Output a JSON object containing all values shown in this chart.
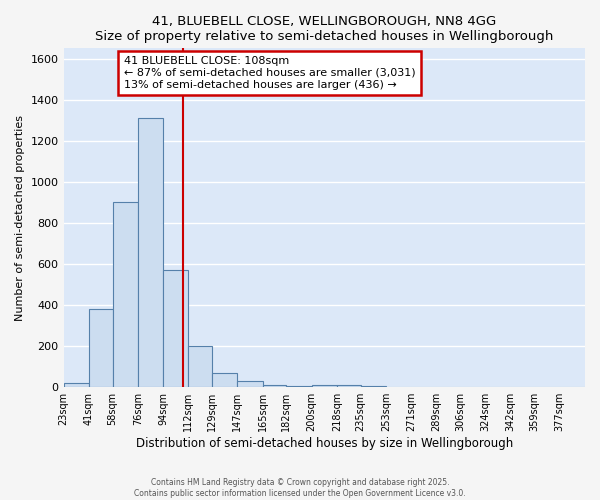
{
  "title": "41, BLUEBELL CLOSE, WELLINGBOROUGH, NN8 4GG",
  "subtitle": "Size of property relative to semi-detached houses in Wellingborough",
  "xlabel": "Distribution of semi-detached houses by size in Wellingborough",
  "ylabel": "Number of semi-detached properties",
  "bar_values": [
    20,
    380,
    900,
    1310,
    570,
    200,
    70,
    30,
    10,
    5,
    10,
    10,
    5,
    0,
    0,
    0,
    0,
    0,
    0,
    0,
    0
  ],
  "bin_labels": [
    "23sqm",
    "41sqm",
    "58sqm",
    "76sqm",
    "94sqm",
    "112sqm",
    "129sqm",
    "147sqm",
    "165sqm",
    "182sqm",
    "200sqm",
    "218sqm",
    "235sqm",
    "253sqm",
    "271sqm",
    "289sqm",
    "306sqm",
    "324sqm",
    "342sqm",
    "359sqm",
    "377sqm"
  ],
  "bin_edges": [
    23,
    41,
    58,
    76,
    94,
    112,
    129,
    147,
    165,
    182,
    200,
    218,
    235,
    253,
    271,
    289,
    306,
    324,
    342,
    359,
    377,
    395
  ],
  "bar_color": "#ccddf0",
  "bar_edge_color": "#5580aa",
  "property_size": 108,
  "red_line_color": "#cc0000",
  "annotation_title": "41 BLUEBELL CLOSE: 108sqm",
  "annotation_line1": "← 87% of semi-detached houses are smaller (3,031)",
  "annotation_line2": "13% of semi-detached houses are larger (436) →",
  "annotation_box_color": "#cc0000",
  "annotation_bg_color": "#ffffff",
  "ylim": [
    0,
    1650
  ],
  "yticks": [
    0,
    200,
    400,
    600,
    800,
    1000,
    1200,
    1400,
    1600
  ],
  "plot_bg_color": "#dce8f8",
  "fig_bg_color": "#f5f5f5",
  "grid_color": "#ffffff",
  "footer_line1": "Contains HM Land Registry data © Crown copyright and database right 2025.",
  "footer_line2": "Contains public sector information licensed under the Open Government Licence v3.0."
}
